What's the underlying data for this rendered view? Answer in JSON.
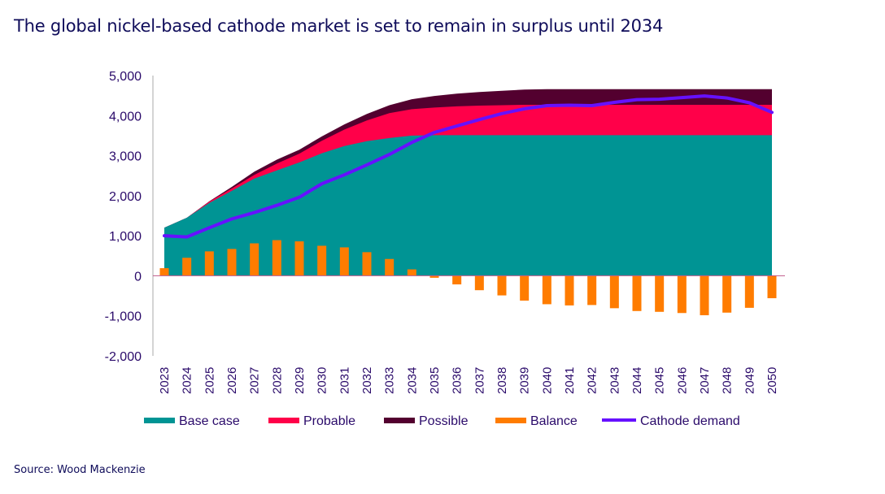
{
  "title": "The global nickel-based cathode market is set to remain in surplus until 2034",
  "source": "Source: Wood Mackenzie",
  "chart_data": {
    "type": "area",
    "title": "The global nickel-based cathode market is set to remain in surplus until 2034",
    "xlabel": "",
    "ylabel": "",
    "ylim": [
      -2000,
      5000
    ],
    "yticks": [
      5000,
      4000,
      3000,
      2000,
      1000,
      0,
      -1000,
      -2000
    ],
    "ytick_labels": [
      "5,000",
      "4,000",
      "3,000",
      "2,000",
      "1,000",
      "0",
      "-1,000",
      "-2,000"
    ],
    "grid": false,
    "legend_position": "bottom",
    "categories": [
      "2023",
      "2024",
      "2025",
      "2026",
      "2027",
      "2028",
      "2029",
      "2030",
      "2031",
      "2032",
      "2033",
      "2034",
      "2035",
      "2036",
      "2037",
      "2038",
      "2039",
      "2040",
      "2041",
      "2042",
      "2043",
      "2044",
      "2045",
      "2046",
      "2047",
      "2048",
      "2049",
      "2050"
    ],
    "series": [
      {
        "name": "Base case",
        "type": "stacked-area",
        "color": "#009494",
        "values": [
          1200,
          1450,
          1820,
          2120,
          2430,
          2630,
          2830,
          3060,
          3240,
          3360,
          3440,
          3500,
          3510,
          3510,
          3510,
          3510,
          3510,
          3510,
          3510,
          3510,
          3510,
          3510,
          3510,
          3510,
          3510,
          3510,
          3510,
          3510
        ]
      },
      {
        "name": "Probable",
        "type": "stacked-area",
        "color": "#ff0049",
        "values": [
          0,
          0,
          30,
          60,
          90,
          170,
          220,
          310,
          410,
          520,
          620,
          660,
          690,
          720,
          740,
          750,
          760,
          760,
          760,
          760,
          760,
          760,
          760,
          760,
          760,
          760,
          760,
          760
        ]
      },
      {
        "name": "Possible",
        "type": "stacked-area",
        "color": "#53002f",
        "values": [
          0,
          0,
          10,
          40,
          80,
          100,
          100,
          110,
          130,
          160,
          200,
          250,
          290,
          320,
          340,
          360,
          380,
          390,
          390,
          390,
          390,
          390,
          390,
          390,
          390,
          390,
          390,
          390
        ]
      },
      {
        "name": "Balance",
        "type": "bar",
        "color": "#ff7c00",
        "values": [
          190,
          450,
          610,
          670,
          810,
          890,
          860,
          750,
          710,
          590,
          420,
          160,
          -50,
          -215,
          -360,
          -490,
          -620,
          -710,
          -740,
          -730,
          -810,
          -880,
          -900,
          -930,
          -985,
          -920,
          -800,
          -560
        ]
      },
      {
        "name": "Cathode demand",
        "type": "line",
        "color": "#6611ff",
        "values": [
          1000,
          970,
          1200,
          1420,
          1580,
          1760,
          1960,
          2300,
          2520,
          2770,
          3030,
          3330,
          3580,
          3740,
          3900,
          4050,
          4170,
          4250,
          4260,
          4250,
          4330,
          4400,
          4410,
          4450,
          4490,
          4440,
          4320,
          4080
        ]
      }
    ]
  }
}
